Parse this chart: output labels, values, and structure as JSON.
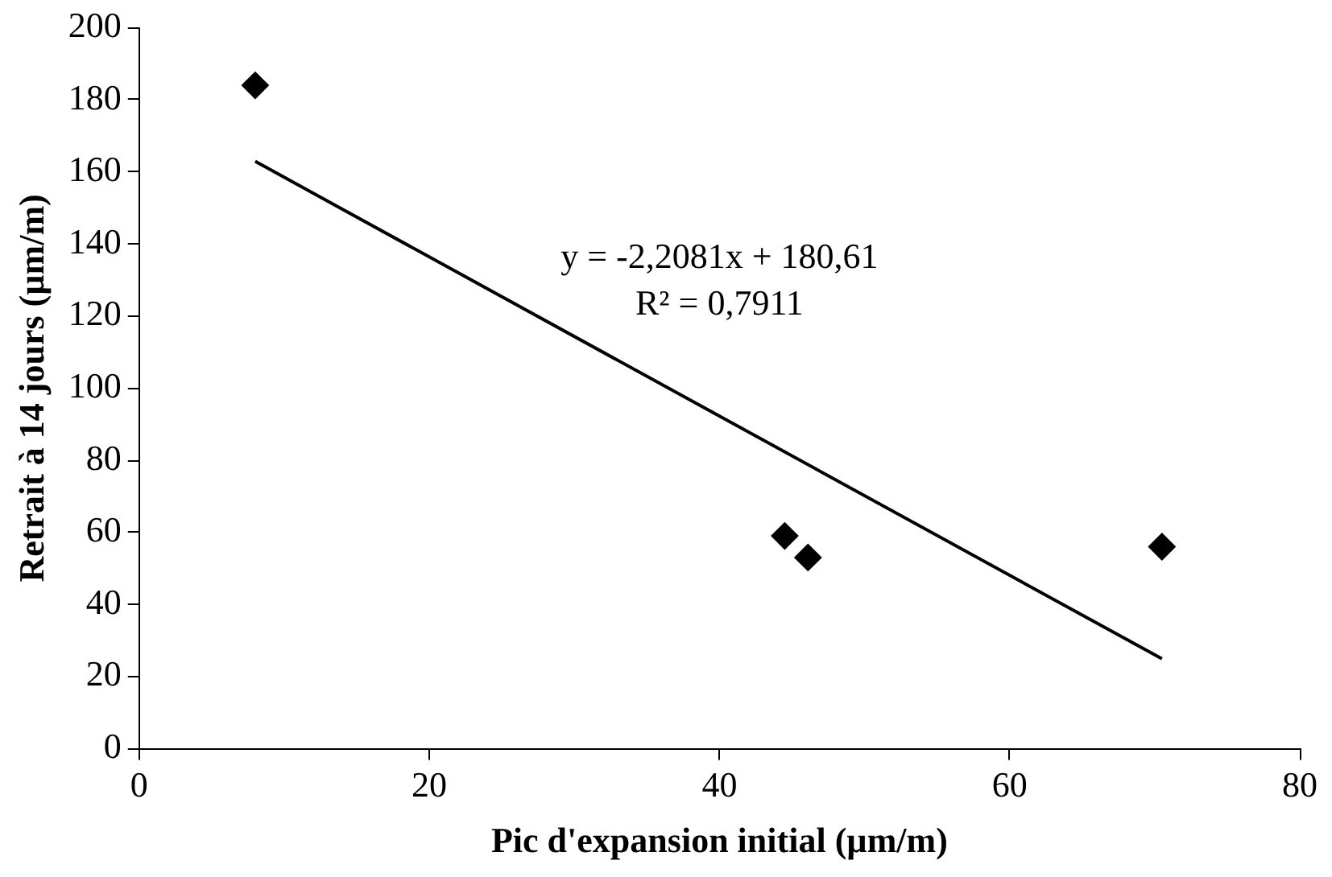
{
  "chart_data": {
    "type": "scatter",
    "xlabel": "Pic d'expansion initial (µm/m)",
    "ylabel": "Retrait à 14 jours (µm/m)",
    "annotations": [
      "y = -2,2081x + 180,61",
      "R² = 0,7911"
    ],
    "xlim": [
      0,
      80
    ],
    "xticks": [
      0,
      20,
      40,
      60,
      80
    ],
    "ylim": [
      0,
      200
    ],
    "yticks": [
      0,
      20,
      40,
      60,
      80,
      100,
      120,
      140,
      160,
      180,
      200
    ],
    "grid": false,
    "legend": false,
    "series": [
      {
        "type": "scatter",
        "color": "#000000",
        "marker": "diamond",
        "x": [
          8,
          44.5,
          46.1,
          70.5
        ],
        "values": [
          184,
          59,
          53,
          56
        ]
      },
      {
        "type": "line",
        "color": "#000000",
        "marker": "none",
        "line_style": "solid",
        "x": [
          8,
          70.5
        ],
        "values": [
          162.9,
          24.9
        ]
      }
    ]
  }
}
